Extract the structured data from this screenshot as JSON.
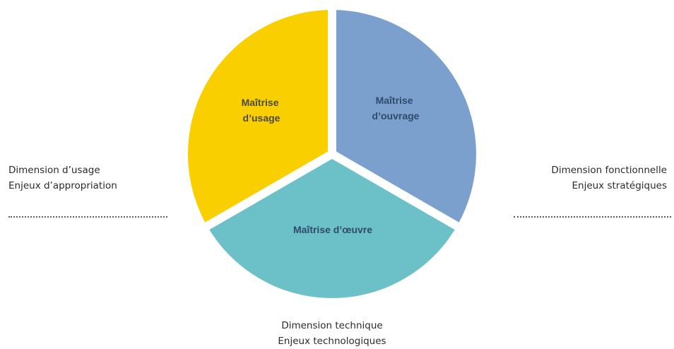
{
  "segments": {
    "usage": {
      "line1": "Maîtrise",
      "line2": "d’usage",
      "color": "#F9CF00",
      "text_color": "#4a4a4a"
    },
    "ouvrage": {
      "line1": "Maîtrise",
      "line2": "d’ouvrage",
      "color": "#7CA0CD",
      "text_color": "#2f4a6b"
    },
    "oeuvre": {
      "line1": "Maîtrise d’œuvre",
      "color": "#6CC0C8",
      "text_color": "#2f4a6b"
    }
  },
  "left_caption": {
    "line1": "Dimension d’usage",
    "line2": "Enjeux d’appropriation"
  },
  "right_caption": {
    "line1": "Dimension fonctionnelle",
    "line2": "Enjeux stratégiques"
  },
  "bottom_caption": {
    "line1": "Dimension technique",
    "line2": "Enjeux technologiques"
  }
}
